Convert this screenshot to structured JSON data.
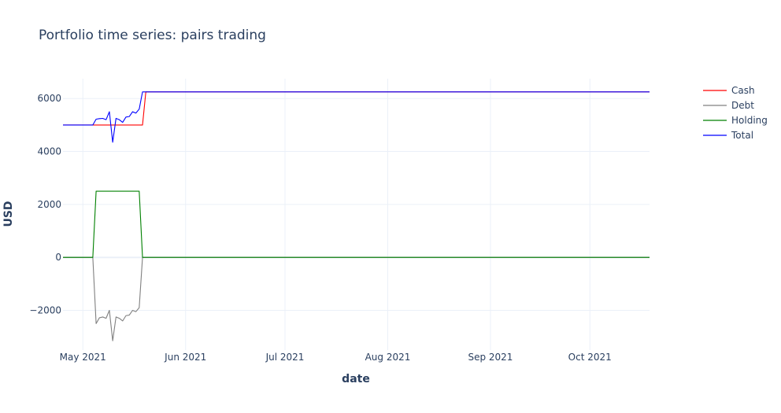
{
  "chart_data": {
    "type": "line",
    "title": "Portfolio time series: pairs trading",
    "xlabel": "date",
    "ylabel": "USD",
    "xlim": [
      "2021-04-25",
      "2021-10-19"
    ],
    "ylim": [
      -3500,
      6750
    ],
    "x_ticks": [
      {
        "date": "2021-05-01",
        "label": "May 2021"
      },
      {
        "date": "2021-06-01",
        "label": "Jun 2021"
      },
      {
        "date": "2021-07-01",
        "label": "Jul 2021"
      },
      {
        "date": "2021-08-01",
        "label": "Aug 2021"
      },
      {
        "date": "2021-09-01",
        "label": "Sep 2021"
      },
      {
        "date": "2021-10-01",
        "label": "Oct 2021"
      }
    ],
    "y_ticks": [
      {
        "value": -2000,
        "label": "−2000"
      },
      {
        "value": 0,
        "label": "0"
      },
      {
        "value": 2000,
        "label": "2000"
      },
      {
        "value": 4000,
        "label": "4000"
      },
      {
        "value": 6000,
        "label": "6000"
      }
    ],
    "grid": true,
    "legend_position": "top-right",
    "series": [
      {
        "name": "Cash",
        "color": "#ff0000",
        "points": [
          [
            "2021-04-25",
            5000
          ],
          [
            "2021-05-05",
            5000
          ],
          [
            "2021-05-19",
            5000
          ],
          [
            "2021-05-20",
            6250
          ],
          [
            "2021-10-19",
            6250
          ]
        ]
      },
      {
        "name": "Debt",
        "color": "#808080",
        "points": [
          [
            "2021-04-25",
            0
          ],
          [
            "2021-05-04",
            0
          ],
          [
            "2021-05-05",
            -2500
          ],
          [
            "2021-05-06",
            -2280
          ],
          [
            "2021-05-07",
            -2250
          ],
          [
            "2021-05-08",
            -2300
          ],
          [
            "2021-05-09",
            -2000
          ],
          [
            "2021-05-10",
            -3150
          ],
          [
            "2021-05-11",
            -2250
          ],
          [
            "2021-05-12",
            -2300
          ],
          [
            "2021-05-13",
            -2400
          ],
          [
            "2021-05-14",
            -2200
          ],
          [
            "2021-05-15",
            -2180
          ],
          [
            "2021-05-16",
            -2000
          ],
          [
            "2021-05-17",
            -2050
          ],
          [
            "2021-05-18",
            -1900
          ],
          [
            "2021-05-19",
            0
          ],
          [
            "2021-10-19",
            0
          ]
        ]
      },
      {
        "name": "Holding",
        "color": "#008000",
        "points": [
          [
            "2021-04-25",
            0
          ],
          [
            "2021-05-04",
            0
          ],
          [
            "2021-05-05",
            2500
          ],
          [
            "2021-05-18",
            2500
          ],
          [
            "2021-05-19",
            0
          ],
          [
            "2021-10-19",
            0
          ]
        ]
      },
      {
        "name": "Total",
        "color": "#0000ff",
        "points": [
          [
            "2021-04-25",
            5000
          ],
          [
            "2021-05-04",
            5000
          ],
          [
            "2021-05-05",
            5220
          ],
          [
            "2021-05-06",
            5240
          ],
          [
            "2021-05-07",
            5250
          ],
          [
            "2021-05-08",
            5200
          ],
          [
            "2021-05-09",
            5500
          ],
          [
            "2021-05-10",
            4350
          ],
          [
            "2021-05-11",
            5250
          ],
          [
            "2021-05-12",
            5200
          ],
          [
            "2021-05-13",
            5100
          ],
          [
            "2021-05-14",
            5300
          ],
          [
            "2021-05-15",
            5320
          ],
          [
            "2021-05-16",
            5500
          ],
          [
            "2021-05-17",
            5450
          ],
          [
            "2021-05-18",
            5600
          ],
          [
            "2021-05-19",
            6250
          ],
          [
            "2021-10-19",
            6250
          ]
        ]
      }
    ]
  }
}
